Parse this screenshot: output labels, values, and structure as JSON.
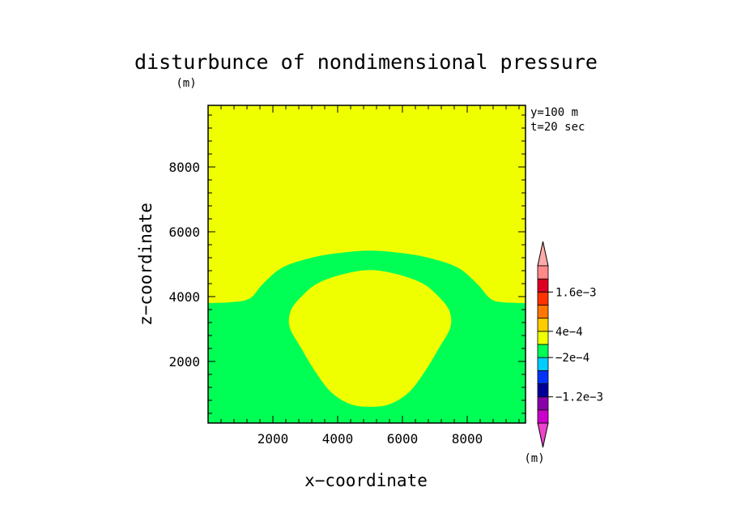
{
  "chart_data": {
    "type": "heatmap",
    "title": "disturbunce of nondimensional pressure",
    "x_unit": "(m)",
    "y_unit": "(m)",
    "xlabel": "x−coordinate",
    "ylabel": "z−coordinate",
    "xlim": [
      0,
      9800
    ],
    "ylim": [
      100,
      9900
    ],
    "x_ticks": [
      2000,
      4000,
      6000,
      8000
    ],
    "x_tick_labels": [
      "2000",
      "4000",
      "6000",
      "8000"
    ],
    "y_ticks": [
      2000,
      4000,
      6000,
      8000
    ],
    "y_tick_labels": [
      "2000",
      "4000",
      "6000",
      "8000"
    ],
    "annotations": [
      "y=100 m",
      "t=20 sec"
    ],
    "background_color": "#f0ff00",
    "regions": [
      {
        "name": "lower-band",
        "color": "#00ff55",
        "outline": [
          [
            0,
            100
          ],
          [
            0,
            3800
          ],
          [
            750,
            3830
          ],
          [
            1300,
            3950
          ],
          [
            1700,
            4400
          ],
          [
            2300,
            4900
          ],
          [
            3200,
            5200
          ],
          [
            4000,
            5340
          ],
          [
            5000,
            5420
          ],
          [
            6000,
            5340
          ],
          [
            6800,
            5200
          ],
          [
            7700,
            4900
          ],
          [
            8300,
            4400
          ],
          [
            8700,
            3950
          ],
          [
            9050,
            3830
          ],
          [
            9800,
            3800
          ],
          [
            9800,
            100
          ]
        ]
      },
      {
        "name": "inner-bubble",
        "color": "#f0ff00",
        "outline": [
          [
            5000,
            4820
          ],
          [
            5800,
            4700
          ],
          [
            6600,
            4420
          ],
          [
            7100,
            4020
          ],
          [
            7450,
            3560
          ],
          [
            7480,
            3050
          ],
          [
            7150,
            2450
          ],
          [
            6700,
            1700
          ],
          [
            6200,
            1050
          ],
          [
            5600,
            680
          ],
          [
            5000,
            600
          ],
          [
            4400,
            680
          ],
          [
            3800,
            1050
          ],
          [
            3300,
            1700
          ],
          [
            2850,
            2450
          ],
          [
            2520,
            3050
          ],
          [
            2550,
            3560
          ],
          [
            2900,
            4020
          ],
          [
            3400,
            4420
          ],
          [
            4200,
            4700
          ]
        ]
      }
    ],
    "colorbar": {
      "unit": "(m)",
      "levels": [
        {
          "color": "#cc00cc"
        },
        {
          "color": "#8800aa"
        },
        {
          "color": "#000099"
        },
        {
          "color": "#0033ff"
        },
        {
          "color": "#00ccff"
        },
        {
          "color": "#00ff55"
        },
        {
          "color": "#f0ff00"
        },
        {
          "color": "#ffcc00"
        },
        {
          "color": "#ff7700"
        },
        {
          "color": "#ff3300"
        },
        {
          "color": "#dd0022"
        },
        {
          "color": "#ff8888"
        }
      ],
      "min_arrow_color": "#ee44cc",
      "max_arrow_color": "#ffaaaa",
      "labels": [
        {
          "text": "−1.2e−3",
          "boundary": 2
        },
        {
          "text": "−2e−4",
          "boundary": 5
        },
        {
          "text": "4e−4",
          "boundary": 7
        },
        {
          "text": "1.6e−3",
          "boundary": 10
        }
      ]
    }
  }
}
